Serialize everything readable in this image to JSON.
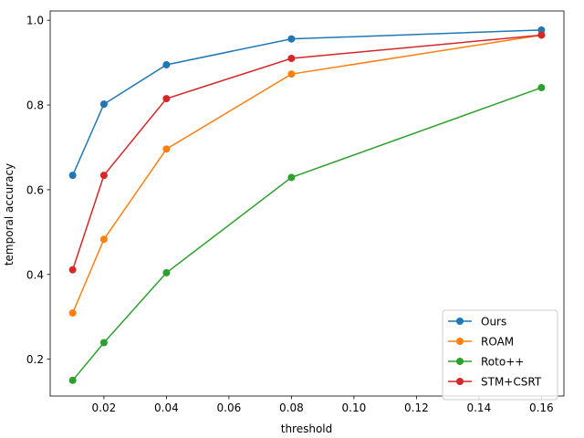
{
  "chart_data": {
    "type": "line",
    "title": "",
    "xlabel": "threshold",
    "ylabel": "temporal accuracy",
    "x": [
      0.01,
      0.02,
      0.04,
      0.08,
      0.16
    ],
    "xlim": [
      0.0028,
      0.1672
    ],
    "ylim": [
      0.113,
      1.022
    ],
    "xticks": [
      0.02,
      0.04,
      0.06,
      0.08,
      0.1,
      0.12,
      0.14,
      0.16
    ],
    "xtick_labels": [
      "0.02",
      "0.04",
      "0.06",
      "0.08",
      "0.10",
      "0.12",
      "0.14",
      "0.16"
    ],
    "yticks": [
      0.2,
      0.4,
      0.6,
      0.8,
      1.0
    ],
    "ytick_labels": [
      "0.2",
      "0.4",
      "0.6",
      "0.8",
      "1.0"
    ],
    "grid": false,
    "legend_position": "bottom-right",
    "series": [
      {
        "name": "Ours",
        "color": "#1f77b4",
        "values": [
          0.634,
          0.802,
          0.895,
          0.956,
          0.977
        ]
      },
      {
        "name": "ROAM",
        "color": "#ff7f0e",
        "values": [
          0.309,
          0.483,
          0.696,
          0.873,
          0.965
        ]
      },
      {
        "name": "Roto++",
        "color": "#2ca02c",
        "values": [
          0.15,
          0.239,
          0.404,
          0.629,
          0.841
        ]
      },
      {
        "name": "STM+CSRT",
        "color": "#d62728",
        "values": [
          0.411,
          0.634,
          0.815,
          0.91,
          0.965
        ]
      }
    ]
  }
}
